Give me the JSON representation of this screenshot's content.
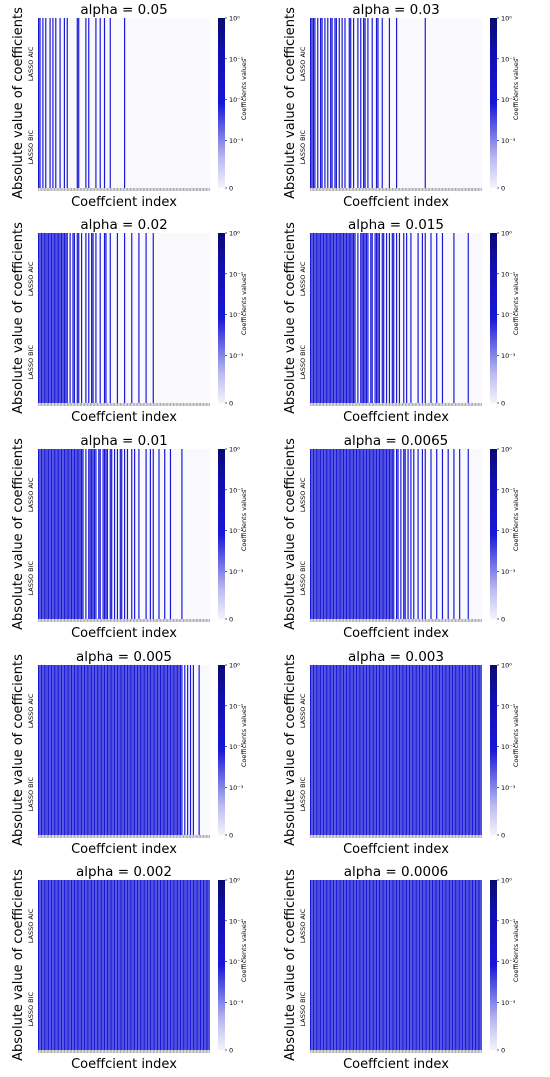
{
  "chart_data": [
    {
      "type": "heatmap",
      "title": "alpha = 0.05",
      "xlabel": "Coeffcient index",
      "ylabel": "Absolute value of coefficients",
      "row_labels": [
        "LASSO AIC",
        "LASSO BIC"
      ],
      "colorbar_label": "Coefficients values",
      "colorbar_scale": "symlog",
      "colorbar_ticks": [
        "10⁰",
        "10⁻¹",
        "10⁻²",
        "10⁻³",
        "0"
      ],
      "n_coefficients": 120,
      "nonzero_indices": [
        0,
        1,
        3,
        5,
        8,
        10,
        12,
        15,
        18,
        20,
        27,
        28,
        33,
        35,
        40,
        43,
        46,
        50,
        60
      ]
    },
    {
      "type": "heatmap",
      "title": "alpha = 0.03",
      "xlabel": "Coeffcient index",
      "ylabel": "Absolute value of coefficients",
      "row_labels": [
        "LASSO AIC",
        "LASSO BIC"
      ],
      "colorbar_label": "Coefficients values",
      "colorbar_scale": "symlog",
      "colorbar_ticks": [
        "10⁰",
        "10⁻¹",
        "10⁻²",
        "10⁻³",
        "0"
      ],
      "n_coefficients": 120,
      "nonzero_indices": [
        0,
        1,
        2,
        3,
        5,
        7,
        8,
        10,
        12,
        14,
        15,
        17,
        18,
        20,
        22,
        24,
        27,
        28,
        30,
        33,
        35,
        37,
        38,
        40,
        43,
        46,
        47,
        50,
        55,
        60,
        80
      ]
    },
    {
      "type": "heatmap",
      "title": "alpha = 0.02",
      "xlabel": "Coeffcient index",
      "ylabel": "Absolute value of coefficients",
      "row_labels": [
        "LASSO AIC",
        "LASSO BIC"
      ],
      "colorbar_label": "Coefficients values",
      "colorbar_scale": "symlog",
      "colorbar_ticks": [
        "10⁰",
        "10⁻¹",
        "10⁻²",
        "10⁻³",
        "0"
      ],
      "n_coefficients": 120,
      "nonzero_indices": [
        0,
        1,
        2,
        3,
        4,
        5,
        6,
        7,
        8,
        9,
        10,
        11,
        12,
        13,
        14,
        15,
        16,
        17,
        18,
        19,
        20,
        22,
        24,
        25,
        27,
        28,
        30,
        33,
        35,
        37,
        38,
        40,
        43,
        46,
        47,
        50,
        55,
        60,
        65,
        70,
        75,
        80
      ]
    },
    {
      "type": "heatmap",
      "title": "alpha = 0.015",
      "xlabel": "Coeffcient index",
      "ylabel": "Absolute value of coefficients",
      "row_labels": [
        "LASSO AIC",
        "LASSO BIC"
      ],
      "colorbar_label": "Coefficients values",
      "colorbar_scale": "symlog",
      "colorbar_ticks": [
        "10⁰",
        "10⁻¹",
        "10⁻²",
        "10⁻³",
        "0"
      ],
      "n_coefficients": 120,
      "nonzero_indices": [
        0,
        1,
        2,
        3,
        4,
        5,
        6,
        7,
        8,
        9,
        10,
        11,
        12,
        13,
        14,
        15,
        16,
        17,
        18,
        19,
        20,
        21,
        22,
        23,
        24,
        25,
        26,
        27,
        28,
        29,
        30,
        31,
        33,
        35,
        36,
        37,
        38,
        39,
        40,
        42,
        43,
        45,
        46,
        47,
        48,
        50,
        51,
        53,
        55,
        57,
        58,
        60,
        62,
        65,
        67,
        70,
        75,
        78,
        80,
        84,
        88,
        92,
        100,
        110
      ]
    },
    {
      "type": "heatmap",
      "title": "alpha = 0.01",
      "xlabel": "Coeffcient index",
      "ylabel": "Absolute value of coefficients",
      "row_labels": [
        "LASSO AIC",
        "LASSO BIC"
      ],
      "colorbar_label": "Coefficients values",
      "colorbar_scale": "symlog",
      "colorbar_ticks": [
        "10⁰",
        "10⁻¹",
        "10⁻²",
        "10⁻³",
        "0"
      ],
      "n_coefficients": 120,
      "nonzero_indices": [
        0,
        1,
        2,
        3,
        4,
        5,
        6,
        7,
        8,
        9,
        10,
        11,
        12,
        13,
        14,
        15,
        16,
        17,
        18,
        19,
        20,
        21,
        22,
        23,
        24,
        25,
        26,
        27,
        28,
        29,
        30,
        31,
        33,
        35,
        36,
        37,
        38,
        39,
        40,
        42,
        43,
        45,
        46,
        47,
        48,
        50,
        51,
        53,
        55,
        57,
        58,
        60,
        62,
        65,
        67,
        70,
        75,
        78,
        80,
        84,
        88,
        92,
        100
      ]
    },
    {
      "type": "heatmap",
      "title": "alpha = 0.0065",
      "xlabel": "Coeffcient index",
      "ylabel": "Absolute value of coefficients",
      "row_labels": [
        "LASSO AIC",
        "LASSO BIC"
      ],
      "colorbar_label": "Coefficients values",
      "colorbar_scale": "symlog",
      "colorbar_ticks": [
        "10⁰",
        "10⁻¹",
        "10⁻²",
        "10⁻³",
        "0"
      ],
      "n_coefficients": 120,
      "nonzero_indices": [
        0,
        1,
        2,
        3,
        4,
        5,
        6,
        7,
        8,
        9,
        10,
        11,
        12,
        13,
        14,
        15,
        16,
        17,
        18,
        19,
        20,
        21,
        22,
        23,
        24,
        25,
        26,
        27,
        28,
        29,
        30,
        31,
        32,
        33,
        34,
        35,
        36,
        37,
        38,
        39,
        40,
        41,
        42,
        43,
        44,
        45,
        46,
        47,
        48,
        49,
        50,
        51,
        52,
        53,
        54,
        55,
        56,
        57,
        58,
        60,
        61,
        63,
        65,
        66,
        68,
        70,
        72,
        75,
        78,
        80,
        84,
        88,
        92,
        96,
        100,
        104,
        110
      ]
    },
    {
      "type": "heatmap",
      "title": "alpha = 0.005",
      "xlabel": "Coeffcient index",
      "ylabel": "Absolute value of coefficients",
      "row_labels": [
        "LASSO AIC",
        "LASSO BIC"
      ],
      "colorbar_label": "Coefficients values",
      "colorbar_scale": "symlog",
      "colorbar_ticks": [
        "10⁰",
        "10⁻¹",
        "10⁻²",
        "10⁻³",
        "0"
      ],
      "n_coefficients": 120,
      "nonzero_indices": [
        0,
        1,
        2,
        3,
        4,
        5,
        6,
        7,
        8,
        9,
        10,
        11,
        12,
        13,
        14,
        15,
        16,
        17,
        18,
        19,
        20,
        21,
        22,
        23,
        24,
        25,
        26,
        27,
        28,
        29,
        30,
        31,
        32,
        33,
        34,
        35,
        36,
        37,
        38,
        39,
        40,
        41,
        42,
        43,
        44,
        45,
        46,
        47,
        48,
        49,
        50,
        51,
        52,
        53,
        54,
        55,
        56,
        57,
        58,
        59,
        60,
        61,
        62,
        63,
        64,
        65,
        66,
        67,
        68,
        69,
        70,
        71,
        72,
        73,
        74,
        75,
        76,
        77,
        78,
        79,
        80,
        81,
        82,
        83,
        84,
        85,
        86,
        87,
        88,
        89,
        90,
        91,
        92,
        93,
        94,
        95,
        96,
        97,
        98,
        99,
        100,
        102,
        104,
        106,
        108,
        112
      ]
    },
    {
      "type": "heatmap",
      "title": "alpha = 0.003",
      "xlabel": "Coeffcient index",
      "ylabel": "Absolute value of coefficients",
      "row_labels": [
        "LASSO AIC",
        "LASSO BIC"
      ],
      "colorbar_label": "Coefficients values",
      "colorbar_scale": "symlog",
      "colorbar_ticks": [
        "10⁰",
        "10⁻¹",
        "10⁻²",
        "10⁻³",
        "0"
      ],
      "n_coefficients": 120,
      "nonzero_indices": [
        0,
        1,
        2,
        3,
        4,
        5,
        6,
        7,
        8,
        9,
        10,
        11,
        12,
        13,
        14,
        15,
        16,
        17,
        18,
        19,
        20,
        21,
        22,
        23,
        24,
        25,
        26,
        27,
        28,
        29,
        30,
        31,
        32,
        33,
        34,
        35,
        36,
        37,
        38,
        39,
        40,
        41,
        42,
        43,
        44,
        45,
        46,
        47,
        48,
        49,
        50,
        51,
        52,
        53,
        54,
        55,
        56,
        57,
        58,
        59,
        60,
        61,
        62,
        63,
        64,
        65,
        66,
        67,
        68,
        69,
        70,
        71,
        72,
        73,
        74,
        75,
        76,
        77,
        78,
        79,
        80,
        81,
        82,
        83,
        84,
        85,
        86,
        87,
        88,
        89,
        90,
        91,
        92,
        93,
        94,
        95,
        96,
        97,
        98,
        99,
        100,
        101,
        102,
        103,
        104,
        105,
        106,
        107,
        108,
        109,
        110,
        111,
        112,
        113,
        114,
        115,
        116,
        117,
        118,
        119
      ]
    },
    {
      "type": "heatmap",
      "title": "alpha = 0.002",
      "xlabel": "Coeffcient index",
      "ylabel": "Absolute value of coefficients",
      "row_labels": [
        "LASSO AIC",
        "LASSO BIC"
      ],
      "colorbar_label": "Coefficients values",
      "colorbar_scale": "symlog",
      "colorbar_ticks": [
        "10⁰",
        "10⁻¹",
        "10⁻²",
        "10⁻³",
        "0"
      ],
      "n_coefficients": 120,
      "nonzero_indices": [
        0,
        1,
        2,
        3,
        4,
        5,
        6,
        7,
        8,
        9,
        10,
        11,
        12,
        13,
        14,
        15,
        16,
        17,
        18,
        19,
        20,
        21,
        22,
        23,
        24,
        25,
        26,
        27,
        28,
        29,
        30,
        31,
        32,
        33,
        34,
        35,
        36,
        37,
        38,
        39,
        40,
        41,
        42,
        43,
        44,
        45,
        46,
        47,
        48,
        49,
        50,
        51,
        52,
        53,
        54,
        55,
        56,
        57,
        58,
        59,
        60,
        61,
        62,
        63,
        64,
        65,
        66,
        67,
        68,
        69,
        70,
        71,
        72,
        73,
        74,
        75,
        76,
        77,
        78,
        79,
        80,
        81,
        82,
        83,
        84,
        85,
        86,
        87,
        88,
        89,
        90,
        91,
        92,
        93,
        94,
        95,
        96,
        97,
        98,
        99,
        100,
        101,
        102,
        103,
        104,
        105,
        106,
        107,
        108,
        109,
        110,
        111,
        112,
        113,
        114,
        115,
        116,
        117,
        118,
        119
      ]
    },
    {
      "type": "heatmap",
      "title": "alpha = 0.0006",
      "xlabel": "Coeffcient index",
      "ylabel": "Absolute value of coefficients",
      "row_labels": [
        "LASSO AIC",
        "LASSO BIC"
      ],
      "colorbar_label": "Coefficients values",
      "colorbar_scale": "symlog",
      "colorbar_ticks": [
        "10⁰",
        "10⁻¹",
        "10⁻²",
        "10⁻³",
        "0"
      ],
      "n_coefficients": 120,
      "nonzero_indices": [
        0,
        1,
        2,
        3,
        4,
        5,
        6,
        7,
        8,
        9,
        10,
        11,
        12,
        13,
        14,
        15,
        16,
        17,
        18,
        19,
        20,
        21,
        22,
        23,
        24,
        25,
        26,
        27,
        28,
        29,
        30,
        31,
        32,
        33,
        34,
        35,
        36,
        37,
        38,
        39,
        40,
        41,
        42,
        43,
        44,
        45,
        46,
        47,
        48,
        49,
        50,
        51,
        52,
        53,
        54,
        55,
        56,
        57,
        58,
        59,
        60,
        61,
        62,
        63,
        64,
        65,
        66,
        67,
        68,
        69,
        70,
        71,
        72,
        73,
        74,
        75,
        76,
        77,
        78,
        79,
        80,
        81,
        82,
        83,
        84,
        85,
        86,
        87,
        88,
        89,
        90,
        91,
        92,
        93,
        94,
        95,
        96,
        97,
        98,
        99,
        100,
        101,
        102,
        103,
        104,
        105,
        106,
        107,
        108,
        109,
        110,
        111,
        112,
        113,
        114,
        115,
        116,
        117,
        118,
        119
      ]
    }
  ],
  "colors": {
    "high": "#0a0a6e",
    "mid": "#1717d8",
    "zero": "#f8f8fd",
    "bar": "#1818d6"
  }
}
